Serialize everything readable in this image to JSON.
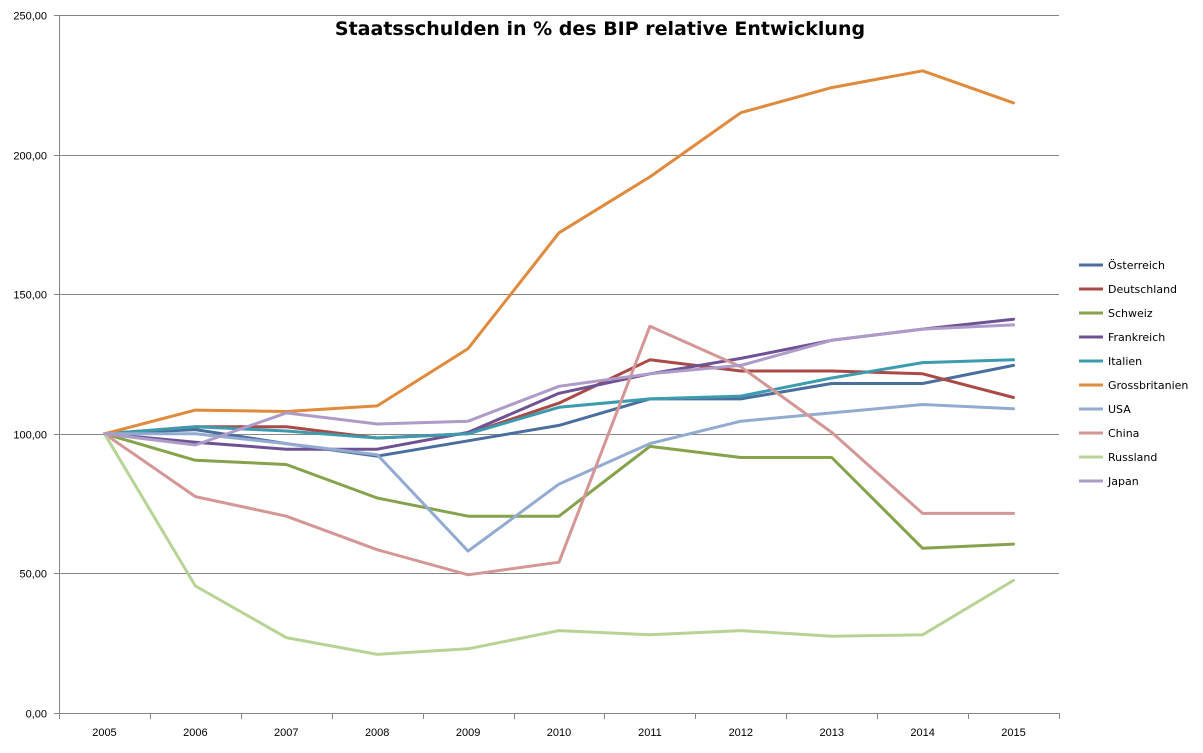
{
  "chart_data": {
    "type": "line",
    "title": "Staatsschulden in % des BIP relative Entwicklung",
    "xlabel": "",
    "ylabel": "",
    "x": [
      "2005",
      "2006",
      "2007",
      "2008",
      "2009",
      "2010",
      "2011",
      "2012",
      "2013",
      "2014",
      "2015"
    ],
    "ylim": [
      0,
      250
    ],
    "yticks": [
      0,
      50,
      100,
      150,
      200,
      250
    ],
    "ytick_labels": [
      "0,00",
      "50,00",
      "100,00",
      "150,00",
      "200,00",
      "250,00"
    ],
    "grid": true,
    "legend_position": "right",
    "series": [
      {
        "name": "Österreich",
        "color": "#4a6f9e",
        "values": [
          100,
          101.5,
          96.5,
          92,
          97.5,
          103,
          112.5,
          112.5,
          118,
          118,
          124.5
        ]
      },
      {
        "name": "Deutschland",
        "color": "#a94a47",
        "values": [
          100,
          102.5,
          102.5,
          98.5,
          100,
          111,
          126.5,
          122.5,
          122.5,
          121.5,
          113
        ]
      },
      {
        "name": "Schweiz",
        "color": "#86a24c",
        "values": [
          100,
          90.5,
          89,
          77,
          70.5,
          70.5,
          95.5,
          91.5,
          91.5,
          59,
          60.5
        ]
      },
      {
        "name": "Frankreich",
        "color": "#6f5294",
        "values": [
          100,
          97,
          94.5,
          94.5,
          100.5,
          114.5,
          121.5,
          127,
          133.5,
          137.5,
          141
        ]
      },
      {
        "name": "Italien",
        "color": "#3d9bae",
        "values": [
          100,
          102.5,
          101,
          98.5,
          100,
          109.5,
          112.5,
          113.5,
          120,
          125.5,
          126.5
        ]
      },
      {
        "name": "Grossbritanien",
        "color": "#df8a3c",
        "values": [
          100,
          108.5,
          108,
          110,
          130.5,
          172,
          192,
          215,
          224,
          230,
          218.5
        ]
      },
      {
        "name": "USA",
        "color": "#93abd1",
        "values": [
          100,
          100,
          96.5,
          92.5,
          58,
          82,
          96.5,
          104.5,
          107.5,
          110.5,
          109
        ]
      },
      {
        "name": "China",
        "color": "#d49795",
        "values": [
          100,
          77.5,
          70.5,
          58.5,
          49.5,
          54,
          138.5,
          124,
          100.5,
          71.5,
          71.5
        ]
      },
      {
        "name": "Russland",
        "color": "#b8d396",
        "values": [
          100,
          45.5,
          27,
          21,
          23,
          29.5,
          28,
          29.5,
          27.5,
          28,
          47.5
        ]
      },
      {
        "name": "Japan",
        "color": "#ae9bc8",
        "values": [
          100,
          96,
          107.5,
          103.5,
          104.5,
          117,
          121.5,
          124.5,
          133.5,
          137.5,
          139
        ]
      }
    ]
  }
}
